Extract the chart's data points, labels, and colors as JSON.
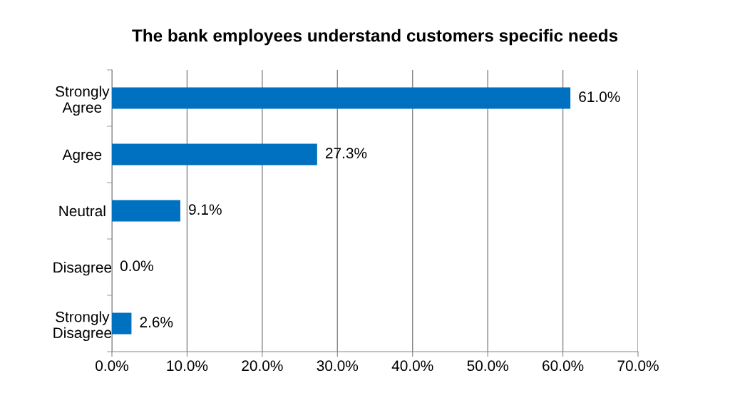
{
  "chart_data": {
    "type": "bar",
    "orientation": "horizontal",
    "title": "The bank employees understand customers specific needs",
    "categories": [
      "Strongly\nAgree",
      "Agree",
      "Neutral",
      "Disagree",
      "Strongly\nDisagree"
    ],
    "values": [
      61.0,
      27.3,
      9.1,
      0.0,
      2.6
    ],
    "value_labels": [
      "61.0%",
      "27.3%",
      "9.1%",
      "0.0%",
      "2.6%"
    ],
    "color": "#0070c0",
    "xlim": [
      0,
      70
    ],
    "xticks": [
      {
        "value": 0,
        "label": "0.0%"
      },
      {
        "value": 10,
        "label": "10.0%"
      },
      {
        "value": 20,
        "label": "20.0%"
      },
      {
        "value": 30,
        "label": "30.0%"
      },
      {
        "value": 40,
        "label": "40.0%"
      },
      {
        "value": 50,
        "label": "50.0%"
      },
      {
        "value": 60,
        "label": "60.0%"
      },
      {
        "value": 70,
        "label": "70.0%"
      }
    ],
    "grid": "x",
    "legend": false
  }
}
